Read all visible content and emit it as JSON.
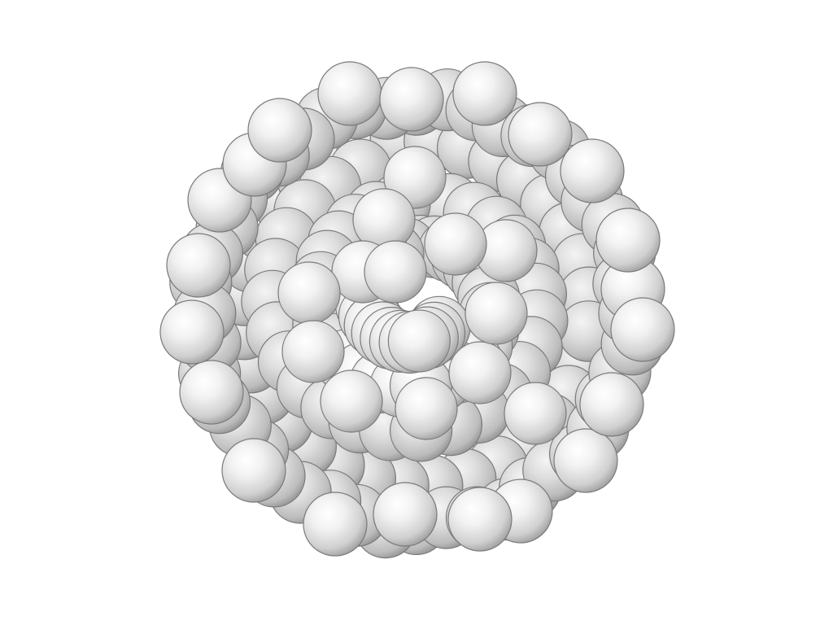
{
  "scene": {
    "subject": "sphere-packing-render",
    "sphere_color": "#e6e6e6",
    "highlight_color": "#ffffff",
    "shadow_color": "#8c8c8c",
    "outline_color": "#7a7a7a",
    "background_color": "#ffffff"
  }
}
